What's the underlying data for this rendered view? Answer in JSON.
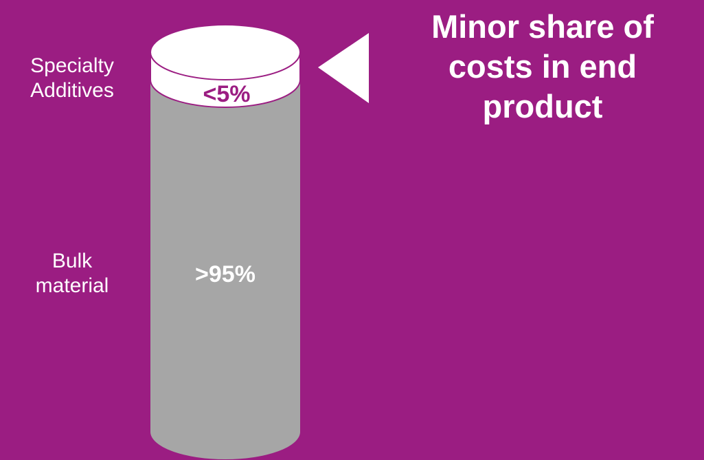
{
  "colors": {
    "background": "#9b1d82",
    "bulk": "#a6a6a6",
    "additive": "#ffffff",
    "accent": "#9b1d82"
  },
  "labels": {
    "specialty_line1": "Specialty",
    "specialty_line2": "Additives",
    "bulk_line1": "Bulk",
    "bulk_line2": "material"
  },
  "segments": {
    "additive_pct": "<5%",
    "bulk_pct": ">95%"
  },
  "headline": {
    "line1": "Minor share of",
    "line2": "costs in end",
    "line3": "product"
  },
  "icons": {
    "pointer": "left-triangle-arrow"
  }
}
